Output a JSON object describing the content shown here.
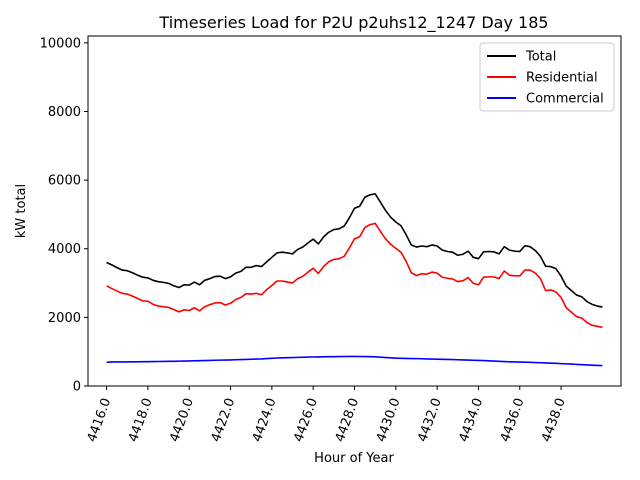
{
  "chart_data": {
    "type": "line",
    "title": "Timeseries Load for P2U p2uhs12_1247  Day 185",
    "xlabel": "Hour of Year",
    "ylabel": "kW total",
    "xlim": [
      4415.1,
      4440.9
    ],
    "ylim": [
      0,
      10200
    ],
    "xticks": [
      4416,
      4418,
      4420,
      4422,
      4424,
      4426,
      4428,
      4430,
      4432,
      4434,
      4436,
      4438
    ],
    "xtick_labels": [
      "4416.0",
      "4418.0",
      "4420.0",
      "4422.0",
      "4424.0",
      "4426.0",
      "4428.0",
      "4430.0",
      "4432.0",
      "4434.0",
      "4436.0",
      "4438.0"
    ],
    "yticks": [
      0,
      2000,
      4000,
      6000,
      8000,
      10000
    ],
    "ytick_labels": [
      "0",
      "2000",
      "4000",
      "6000",
      "8000",
      "10000"
    ],
    "legend_position": "top-right",
    "x_start": 4416.0,
    "x_step": 0.25,
    "series": [
      {
        "name": "Total",
        "color": "#000000",
        "values": [
          3600,
          3530,
          3450,
          3380,
          3360,
          3300,
          3230,
          3170,
          3150,
          3080,
          3040,
          3020,
          2990,
          2920,
          2870,
          2950,
          2940,
          3030,
          2950,
          3080,
          3130,
          3190,
          3200,
          3130,
          3180,
          3290,
          3340,
          3460,
          3460,
          3510,
          3480,
          3620,
          3750,
          3880,
          3900,
          3880,
          3850,
          3980,
          4050,
          4170,
          4280,
          4140,
          4340,
          4480,
          4560,
          4580,
          4660,
          4900,
          5180,
          5240,
          5500,
          5570,
          5600,
          5360,
          5120,
          4920,
          4780,
          4670,
          4410,
          4110,
          4050,
          4080,
          4060,
          4110,
          4080,
          3960,
          3920,
          3900,
          3810,
          3840,
          3930,
          3750,
          3710,
          3910,
          3920,
          3910,
          3850,
          4060,
          3960,
          3930,
          3920,
          4090,
          4060,
          3950,
          3780,
          3490,
          3480,
          3420,
          3200,
          2910,
          2780,
          2650,
          2600,
          2460,
          2380,
          2330,
          2300
        ]
      },
      {
        "name": "Residential",
        "color": "#ff0000",
        "values": [
          2920,
          2840,
          2770,
          2700,
          2680,
          2620,
          2550,
          2480,
          2470,
          2380,
          2330,
          2310,
          2290,
          2230,
          2160,
          2220,
          2200,
          2280,
          2190,
          2310,
          2370,
          2420,
          2430,
          2360,
          2410,
          2520,
          2580,
          2690,
          2680,
          2700,
          2660,
          2810,
          2930,
          3060,
          3060,
          3030,
          3000,
          3130,
          3200,
          3320,
          3430,
          3280,
          3480,
          3620,
          3690,
          3710,
          3780,
          4020,
          4290,
          4350,
          4620,
          4700,
          4740,
          4510,
          4290,
          4130,
          4010,
          3900,
          3630,
          3300,
          3220,
          3270,
          3260,
          3320,
          3290,
          3170,
          3140,
          3120,
          3040,
          3070,
          3160,
          2990,
          2950,
          3170,
          3180,
          3180,
          3130,
          3350,
          3230,
          3210,
          3210,
          3380,
          3380,
          3290,
          3130,
          2780,
          2800,
          2740,
          2580,
          2280,
          2150,
          2020,
          1980,
          1850,
          1770,
          1740,
          1710
        ]
      },
      {
        "name": "Commercial",
        "color": "#0000ff",
        "values": [
          690,
          700,
          700,
          700,
          700,
          705,
          705,
          710,
          710,
          712,
          714,
          716,
          718,
          720,
          725,
          728,
          731,
          735,
          738,
          742,
          746,
          750,
          754,
          757,
          760,
          765,
          770,
          775,
          780,
          785,
          790,
          800,
          808,
          816,
          822,
          826,
          830,
          834,
          838,
          842,
          845,
          848,
          850,
          853,
          855,
          858,
          860,
          862,
          862,
          860,
          858,
          855,
          850,
          840,
          830,
          820,
          812,
          806,
          802,
          800,
          798,
          794,
          790,
          786,
          782,
          778,
          774,
          770,
          765,
          760,
          755,
          750,
          745,
          740,
          735,
          728,
          720,
          712,
          706,
          702,
          698,
          694,
          690,
          684,
          678,
          672,
          666,
          660,
          652,
          645,
          638,
          630,
          622,
          614,
          606,
          600,
          595
        ]
      }
    ]
  }
}
